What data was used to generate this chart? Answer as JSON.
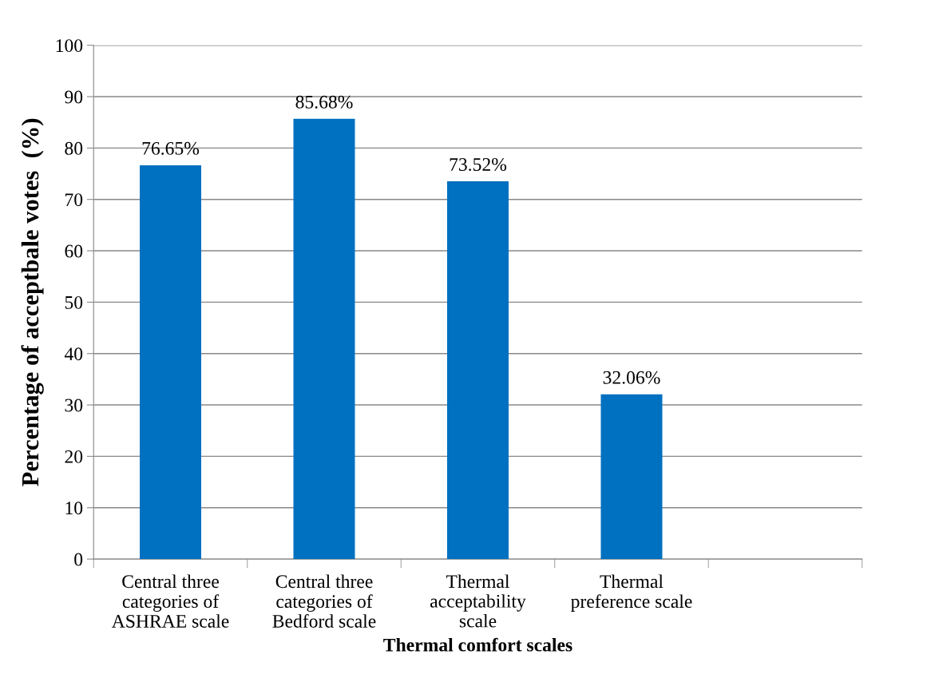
{
  "chart_data": {
    "type": "bar",
    "xlabel": "Thermal comfort scales",
    "ylabel": "Percentage of acceptbale votes  (%)",
    "categories": [
      "Central three\ncategories of\nASHRAE scale",
      "Central three\ncategories of\nBedford scale",
      "Thermal\nacceptability\nscale",
      "Thermal\npreference scale",
      null
    ],
    "values": [
      76.65,
      85.68,
      73.52,
      32.06,
      null
    ],
    "value_labels": [
      "76.65%",
      "85.68%",
      "73.52%",
      "32.06%",
      null
    ],
    "color": "#0070c0",
    "ylim": [
      0,
      100
    ],
    "yticks": [
      0,
      10,
      20,
      30,
      40,
      50,
      60,
      70,
      80,
      90,
      100
    ],
    "grid": "y"
  }
}
